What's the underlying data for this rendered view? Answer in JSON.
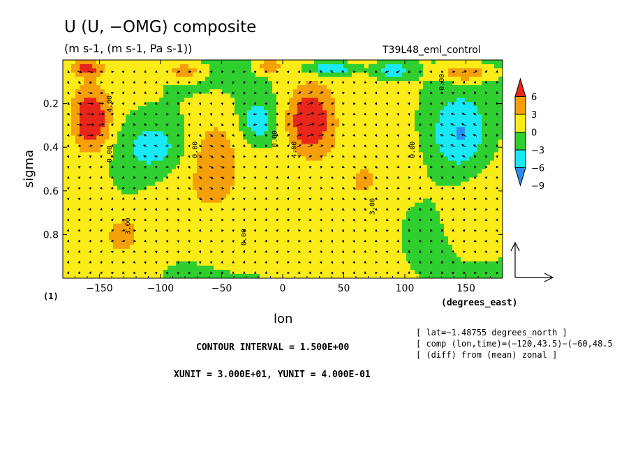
{
  "header": {
    "title": "U (U, −OMG) composite",
    "units": "(m s-1, (m s-1, Pa s-1))",
    "experiment": "T39L48_eml_control"
  },
  "footer": {
    "panel_label": "(1)",
    "contour_interval": "CONTOUR INTERVAL = 1.500E+00",
    "units_line": "XUNIT = 3.000E+01, YUNIT = 4.000E-01",
    "notes": [
      "[ lat=−1.48755 degrees_north ]",
      "[ comp (lon,time)=(−120,43.5)−(−60,48.5",
      "[ (diff) from (mean) zonal ]"
    ]
  },
  "colors": {
    "red": "#e8261b",
    "orange": "#f5a00a",
    "yellow": "#fbec18",
    "green": "#2fcf2f",
    "cyan": "#19e8f5",
    "blue": "#2a8ef0"
  },
  "chart_data": {
    "type": "heatmap",
    "title": "U (U, −OMG) composite",
    "xlabel": "lon",
    "ylabel": "sigma",
    "x_unit_label": "(degrees_east)",
    "xlim": [
      -180,
      180
    ],
    "ylim": [
      1.0,
      0.0
    ],
    "y_reversed": true,
    "grid": false,
    "x_ticks": [
      -150,
      -100,
      -50,
      0,
      50,
      100,
      150
    ],
    "x_tick_labels": [
      "−150",
      "−100",
      "−50",
      "0",
      "50",
      "100",
      "150"
    ],
    "y_ticks": [
      0.2,
      0.4,
      0.6,
      0.8
    ],
    "y_tick_labels": [
      "0.2",
      "0.4",
      "0.6",
      "0.8"
    ],
    "colorbar": {
      "levels": [
        -9,
        -6,
        -3,
        0,
        3,
        6
      ],
      "labels": [
        "−9",
        "−6",
        "−3",
        "0",
        "3",
        "6"
      ],
      "colors": [
        "#2a8ef0",
        "#19e8f5",
        "#2fcf2f",
        "#fbec18",
        "#f5a00a",
        "#e8261b"
      ]
    },
    "contour_labels": [
      {
        "lon": -140,
        "sigma": 0.47,
        "text": "0.00"
      },
      {
        "lon": -70,
        "sigma": 0.45,
        "text": "0.00"
      },
      {
        "lon": -5,
        "sigma": 0.4,
        "text": "0.00"
      },
      {
        "lon": 11,
        "sigma": 0.45,
        "text": "4.00"
      },
      {
        "lon": 108,
        "sigma": 0.45,
        "text": "0.00"
      },
      {
        "lon": 132,
        "sigma": 0.14,
        "text": "0.00"
      },
      {
        "lon": -140,
        "sigma": 0.24,
        "text": "4.00"
      },
      {
        "lon": -125,
        "sigma": 0.8,
        "text": "3.00"
      },
      {
        "lon": 75,
        "sigma": 0.71,
        "text": "3.00"
      },
      {
        "lon": -30,
        "sigma": 0.85,
        "text": "0.00"
      }
    ],
    "features": [
      {
        "lon": -157,
        "sigma": 0.28,
        "sx": 16,
        "sy": 0.14,
        "value": 9
      },
      {
        "lon": 22,
        "sigma": 0.28,
        "sx": 18,
        "sy": 0.15,
        "value": 9
      },
      {
        "lon": -105,
        "sigma": 0.4,
        "sx": 25,
        "sy": 0.12,
        "value": -5
      },
      {
        "lon": -20,
        "sigma": 0.28,
        "sx": 14,
        "sy": 0.1,
        "value": -5.5
      },
      {
        "lon": 145,
        "sigma": 0.35,
        "sx": 24,
        "sy": 0.18,
        "value": -7
      },
      {
        "lon": -55,
        "sigma": 0.45,
        "sx": 20,
        "sy": 0.22,
        "value": 3.5
      },
      {
        "lon": 65,
        "sigma": 0.55,
        "sx": 40,
        "sy": 0.25,
        "value": 4
      },
      {
        "lon": -130,
        "sigma": 0.8,
        "sx": 15,
        "sy": 0.1,
        "value": 4
      },
      {
        "lon": -160,
        "sigma": 0.6,
        "sx": 20,
        "sy": 0.2,
        "value": 2
      },
      {
        "lon": -40,
        "sigma": 0.85,
        "sx": 25,
        "sy": 0.12,
        "value": 2
      },
      {
        "lon": 5,
        "sigma": 0.78,
        "sx": 15,
        "sy": 0.2,
        "value": 2
      },
      {
        "lon": 110,
        "sigma": 0.75,
        "sx": 30,
        "sy": 0.2,
        "value": -1.5
      },
      {
        "lon": 160,
        "sigma": 0.75,
        "sx": 25,
        "sy": 0.2,
        "value": 1.5
      },
      {
        "lon": -80,
        "sigma": 0.7,
        "sx": 25,
        "sy": 0.2,
        "value": 1
      },
      {
        "lon": 150,
        "sigma": 0.06,
        "sx": 20,
        "sy": 0.04,
        "value": 7
      },
      {
        "lon": -160,
        "sigma": 0.04,
        "sx": 12,
        "sy": 0.03,
        "value": 6
      },
      {
        "lon": 90,
        "sigma": 0.05,
        "sx": 15,
        "sy": 0.04,
        "value": -6
      },
      {
        "lon": -80,
        "sigma": 0.05,
        "sx": 15,
        "sy": 0.04,
        "value": 5
      },
      {
        "lon": 40,
        "sigma": 0.04,
        "sx": 20,
        "sy": 0.03,
        "value": -7
      },
      {
        "lon": -10,
        "sigma": 0.03,
        "sx": 10,
        "sy": 0.03,
        "value": 6
      }
    ],
    "reference_vector": {
      "xunit": 30.0,
      "yunit": 0.4
    }
  }
}
